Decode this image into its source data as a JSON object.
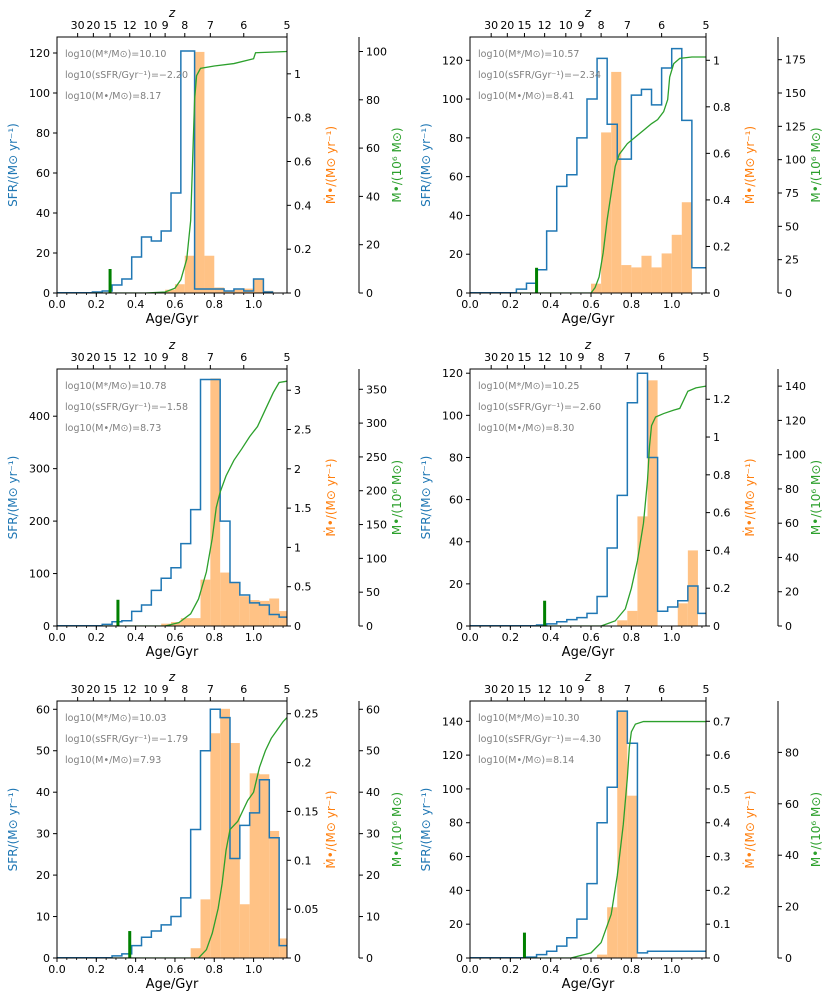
{
  "figure": {
    "xlabel": "Age/Gyr",
    "top_label": "z",
    "ylabel_sfr": "SFR/(M⊙ yr⁻¹)",
    "ylabel_mdot": "Ṁ•/(M⊙ yr⁻¹)",
    "ylabel_mbh": "M•/(10⁶ M⊙)",
    "colors": {
      "sfr": "#1f77b4",
      "bhar": "#ffbb78",
      "mbh": "#2ca02c",
      "marker": "#008000",
      "legend": "#7f7f7f"
    }
  },
  "chart_data": [
    {
      "type": "bar",
      "title": "",
      "annotations": [
        "log10(M*/M⊙)=10.10",
        "log10(sSFR/Gyr⁻¹)=−2.20",
        "log10(M•/M⊙)=8.17"
      ],
      "xlim": [
        0,
        1.17
      ],
      "xticks": [
        0.0,
        0.2,
        0.4,
        0.6,
        0.8,
        1.0
      ],
      "ztick_labels": [
        "30",
        "20",
        "15",
        "12",
        "10",
        "9",
        "8",
        "7",
        "6",
        "5"
      ],
      "ztick_ages": [
        0.105,
        0.185,
        0.27,
        0.37,
        0.475,
        0.55,
        0.65,
        0.78,
        0.95,
        1.17
      ],
      "sfr_ylim": [
        0,
        128
      ],
      "sfr_yticks": [
        0,
        20,
        40,
        60,
        80,
        100,
        120
      ],
      "sfr_x": [
        0.18,
        0.23,
        0.28,
        0.33,
        0.38,
        0.43,
        0.48,
        0.53,
        0.58,
        0.63,
        0.7,
        0.75,
        0.8,
        0.85,
        0.9,
        0.95,
        1.0,
        1.05,
        1.1
      ],
      "sfr_values": [
        0.5,
        1,
        4,
        7,
        18,
        28,
        26,
        31,
        50,
        121,
        2,
        2,
        2,
        1,
        2,
        1,
        7,
        0.5
      ],
      "bhar_ylim": [
        0,
        1.168
      ],
      "bhar_yticks": [
        0,
        0.2,
        0.4,
        0.6,
        0.8,
        1.0
      ],
      "bhar_x": [
        0.55,
        0.6,
        0.65,
        0.7,
        0.75,
        0.8,
        0.85,
        0.9,
        0.95,
        1.0,
        1.05,
        1.1
      ],
      "bhar_values": [
        0.015,
        0.04,
        0.17,
        1.1,
        0.17,
        0.025,
        0.01,
        0.015,
        0.02,
        0.065,
        0.01
      ],
      "mbh_ylim": [
        0,
        106
      ],
      "mbh_yticks": [
        0,
        20,
        40,
        60,
        80,
        100
      ],
      "mbh_points": [
        [
          0.0,
          0.0
        ],
        [
          0.45,
          0.0
        ],
        [
          0.55,
          0.4
        ],
        [
          0.6,
          2.0
        ],
        [
          0.63,
          5.5
        ],
        [
          0.66,
          14.0
        ],
        [
          0.68,
          30.0
        ],
        [
          0.69,
          55.0
        ],
        [
          0.7,
          80.0
        ],
        [
          0.71,
          90.0
        ],
        [
          0.73,
          93.0
        ],
        [
          0.8,
          94.0
        ],
        [
          0.9,
          95.0
        ],
        [
          1.0,
          97.0
        ],
        [
          1.01,
          99.5
        ],
        [
          1.17,
          100.0
        ]
      ],
      "seed_age": 0.27,
      "seed_marker": 12
    },
    {
      "type": "bar",
      "title": "",
      "annotations": [
        "log10(M*/M⊙)=10.57",
        "log10(sSFR/Gyr⁻¹)=−2.34",
        "log10(M•/M⊙)=8.41"
      ],
      "xlim": [
        0,
        1.17
      ],
      "xticks": [
        0.0,
        0.2,
        0.4,
        0.6,
        0.8,
        1.0
      ],
      "ztick_labels": [
        "30",
        "20",
        "15",
        "12",
        "10",
        "9",
        "8",
        "7",
        "6",
        "5"
      ],
      "ztick_ages": [
        0.105,
        0.185,
        0.27,
        0.37,
        0.475,
        0.55,
        0.65,
        0.78,
        0.95,
        1.17
      ],
      "sfr_ylim": [
        0,
        132
      ],
      "sfr_yticks": [
        0,
        20,
        40,
        60,
        80,
        100,
        120
      ],
      "sfr_x": [
        0.23,
        0.28,
        0.33,
        0.38,
        0.43,
        0.48,
        0.53,
        0.58,
        0.63,
        0.68,
        0.73,
        0.8,
        0.85,
        0.9,
        0.95,
        1.0,
        1.05,
        1.1,
        1.17
      ],
      "sfr_values": [
        2,
        5,
        12,
        32,
        55,
        61,
        80,
        100,
        121,
        87,
        69,
        102,
        105,
        97,
        116,
        126,
        89,
        13
      ],
      "bhar_ylim": [
        0,
        1.1
      ],
      "bhar_yticks": [
        0,
        0.2,
        0.4,
        0.6,
        0.8,
        1.0
      ],
      "bhar_x": [
        0.6,
        0.65,
        0.7,
        0.75,
        0.8,
        0.85,
        0.9,
        0.95,
        1.0,
        1.05,
        1.1
      ],
      "bhar_values": [
        0.04,
        0.69,
        0.95,
        0.12,
        0.11,
        0.16,
        0.11,
        0.17,
        0.25,
        0.39
      ],
      "mbh_ylim": [
        0,
        192
      ],
      "mbh_yticks": [
        0,
        25,
        50,
        75,
        100,
        125,
        150,
        175
      ],
      "mbh_points": [
        [
          0.0,
          0.0
        ],
        [
          0.6,
          0.0
        ],
        [
          0.62,
          4.0
        ],
        [
          0.64,
          12.0
        ],
        [
          0.66,
          30.0
        ],
        [
          0.68,
          55.0
        ],
        [
          0.7,
          75.0
        ],
        [
          0.72,
          95.0
        ],
        [
          0.74,
          104.0
        ],
        [
          0.78,
          112.0
        ],
        [
          0.82,
          117.0
        ],
        [
          0.86,
          122.0
        ],
        [
          0.9,
          127.0
        ],
        [
          0.93,
          130.0
        ],
        [
          0.96,
          136.0
        ],
        [
          0.98,
          145.0
        ],
        [
          0.99,
          162.0
        ],
        [
          1.01,
          172.0
        ],
        [
          1.04,
          176.0
        ],
        [
          1.1,
          177.0
        ],
        [
          1.17,
          177.0
        ]
      ],
      "seed_age": 0.33,
      "seed_marker": 13
    },
    {
      "type": "bar",
      "title": "",
      "annotations": [
        "log10(M*/M⊙)=10.78",
        "log10(sSFR/Gyr⁻¹)=−1.58",
        "log10(M•/M⊙)=8.73"
      ],
      "xlim": [
        0,
        1.17
      ],
      "xticks": [
        0.0,
        0.2,
        0.4,
        0.6,
        0.8,
        1.0
      ],
      "ztick_labels": [
        "30",
        "20",
        "15",
        "12",
        "10",
        "9",
        "8",
        "7",
        "6",
        "5"
      ],
      "ztick_ages": [
        0.105,
        0.185,
        0.27,
        0.37,
        0.475,
        0.55,
        0.65,
        0.78,
        0.95,
        1.17
      ],
      "sfr_ylim": [
        0,
        490
      ],
      "sfr_yticks": [
        0,
        100,
        200,
        300,
        400
      ],
      "sfr_x": [
        0.23,
        0.28,
        0.33,
        0.38,
        0.43,
        0.48,
        0.53,
        0.58,
        0.63,
        0.68,
        0.73,
        0.78,
        0.83,
        0.88,
        0.93,
        0.98,
        1.03,
        1.08,
        1.13,
        1.17
      ],
      "sfr_values": [
        3,
        8,
        10,
        28,
        40,
        68,
        91,
        111,
        157,
        222,
        470,
        470,
        200,
        83,
        59,
        44,
        40,
        22,
        17
      ],
      "bhar_ylim": [
        0,
        3.27
      ],
      "bhar_yticks": [
        0,
        0.5,
        1.0,
        1.5,
        2.0,
        2.5,
        3.0
      ],
      "bhar_x": [
        0.53,
        0.58,
        0.63,
        0.73,
        0.78,
        0.83,
        0.88,
        0.93,
        0.98,
        1.03,
        1.08,
        1.13,
        1.17
      ],
      "bhar_values": [
        0.03,
        0.05,
        0.1,
        0.59,
        3.15,
        0.68,
        0.55,
        0.38,
        0.33,
        0.32,
        0.35,
        0.19
      ],
      "mbh_ylim": [
        0,
        380
      ],
      "mbh_yticks": [
        0,
        50,
        100,
        150,
        200,
        250,
        300,
        350
      ],
      "mbh_points": [
        [
          0.0,
          0.0
        ],
        [
          0.55,
          0.0
        ],
        [
          0.62,
          5.0
        ],
        [
          0.68,
          18.0
        ],
        [
          0.72,
          40.0
        ],
        [
          0.76,
          80.0
        ],
        [
          0.79,
          130.0
        ],
        [
          0.81,
          175.0
        ],
        [
          0.83,
          198.0
        ],
        [
          0.86,
          222.0
        ],
        [
          0.9,
          245.0
        ],
        [
          0.94,
          262.0
        ],
        [
          0.98,
          280.0
        ],
        [
          1.02,
          295.0
        ],
        [
          1.06,
          320.0
        ],
        [
          1.1,
          345.0
        ],
        [
          1.13,
          360.0
        ],
        [
          1.17,
          362.0
        ]
      ],
      "seed_age": 0.31,
      "seed_marker": 50
    },
    {
      "type": "bar",
      "title": "",
      "annotations": [
        "log10(M*/M⊙)=10.25",
        "log10(sSFR/Gyr⁻¹)=−2.60",
        "log10(M•/M⊙)=8.30"
      ],
      "xlim": [
        0,
        1.17
      ],
      "xticks": [
        0.0,
        0.2,
        0.4,
        0.6,
        0.8,
        1.0
      ],
      "ztick_labels": [
        "30",
        "20",
        "15",
        "12",
        "10",
        "9",
        "8",
        "7",
        "6",
        "5"
      ],
      "ztick_ages": [
        0.105,
        0.185,
        0.27,
        0.37,
        0.475,
        0.55,
        0.65,
        0.78,
        0.95,
        1.17
      ],
      "sfr_ylim": [
        0,
        122
      ],
      "sfr_yticks": [
        0,
        20,
        40,
        60,
        80,
        100,
        120
      ],
      "sfr_x": [
        0.33,
        0.38,
        0.43,
        0.48,
        0.53,
        0.58,
        0.63,
        0.68,
        0.73,
        0.78,
        0.83,
        0.88,
        0.93,
        0.98,
        1.03,
        1.08,
        1.13,
        1.17
      ],
      "sfr_values": [
        0.5,
        1,
        2,
        3,
        4,
        6,
        14,
        37,
        62,
        106,
        120,
        80,
        7,
        9,
        12,
        19,
        6
      ],
      "bhar_ylim": [
        0,
        1.36
      ],
      "bhar_yticks": [
        0,
        0.2,
        0.4,
        0.6,
        0.8,
        1.0,
        1.2
      ],
      "bhar_x": [
        0.73,
        0.78,
        0.83,
        0.88,
        0.93,
        0.98,
        1.03,
        1.08,
        1.13
      ],
      "bhar_values": [
        0.03,
        0.08,
        0.58,
        1.3,
        0.0,
        0.0,
        0.12,
        0.4
      ],
      "mbh_ylim": [
        0,
        150
      ],
      "mbh_yticks": [
        0,
        20,
        40,
        60,
        80,
        100,
        120,
        140
      ],
      "mbh_points": [
        [
          0.0,
          0.0
        ],
        [
          0.65,
          0.0
        ],
        [
          0.72,
          3.0
        ],
        [
          0.77,
          10.0
        ],
        [
          0.8,
          22.0
        ],
        [
          0.83,
          38.0
        ],
        [
          0.86,
          60.0
        ],
        [
          0.88,
          85.0
        ],
        [
          0.89,
          105.0
        ],
        [
          0.9,
          117.0
        ],
        [
          0.92,
          122.0
        ],
        [
          0.96,
          124.0
        ],
        [
          1.01,
          126.0
        ],
        [
          1.04,
          127.0
        ],
        [
          1.08,
          137.0
        ],
        [
          1.12,
          139.0
        ],
        [
          1.17,
          140.0
        ]
      ],
      "seed_age": 0.37,
      "seed_marker": 12
    },
    {
      "type": "bar",
      "title": "",
      "annotations": [
        "log10(M*/M⊙)=10.03",
        "log10(sSFR/Gyr⁻¹)=−1.79",
        "log10(M•/M⊙)=7.93"
      ],
      "xlim": [
        0,
        1.17
      ],
      "xticks": [
        0.0,
        0.2,
        0.4,
        0.6,
        0.8,
        1.0
      ],
      "ztick_labels": [
        "30",
        "20",
        "15",
        "12",
        "10",
        "9",
        "8",
        "7",
        "6",
        "5"
      ],
      "ztick_ages": [
        0.105,
        0.185,
        0.27,
        0.37,
        0.475,
        0.55,
        0.65,
        0.78,
        0.95,
        1.17
      ],
      "sfr_ylim": [
        0,
        62
      ],
      "sfr_yticks": [
        0,
        10,
        20,
        30,
        40,
        50,
        60
      ],
      "sfr_x": [
        0.28,
        0.33,
        0.38,
        0.43,
        0.48,
        0.53,
        0.58,
        0.63,
        0.68,
        0.73,
        0.78,
        0.83,
        0.88,
        0.93,
        0.98,
        1.03,
        1.08,
        1.13,
        1.17
      ],
      "sfr_values": [
        0.5,
        1,
        3,
        5,
        6.5,
        8,
        10,
        14.5,
        31,
        50,
        60,
        58,
        24,
        32,
        35,
        43,
        29,
        3
      ],
      "bhar_ylim": [
        0,
        0.263
      ],
      "bhar_yticks": [
        0,
        0.05,
        0.1,
        0.15,
        0.2,
        0.25
      ],
      "bhar_x": [
        0.68,
        0.73,
        0.78,
        0.83,
        0.88,
        0.93,
        0.98,
        1.03,
        1.08,
        1.13,
        1.17
      ],
      "bhar_values": [
        0.01,
        0.06,
        0.23,
        0.255,
        0.22,
        0.055,
        0.189,
        0.188,
        0.13,
        0.02
      ],
      "mbh_ylim": [
        0,
        62
      ],
      "mbh_yticks": [
        0,
        10,
        20,
        30,
        40,
        50,
        60
      ],
      "mbh_points": [
        [
          0.0,
          0.0
        ],
        [
          0.72,
          0.0
        ],
        [
          0.76,
          2.0
        ],
        [
          0.79,
          6.0
        ],
        [
          0.82,
          12.0
        ],
        [
          0.84,
          18.0
        ],
        [
          0.86,
          26.0
        ],
        [
          0.88,
          31.0
        ],
        [
          0.92,
          33.0
        ],
        [
          0.95,
          36.0
        ],
        [
          0.97,
          38.0
        ],
        [
          1.0,
          40.0
        ],
        [
          1.03,
          46.0
        ],
        [
          1.06,
          50.0
        ],
        [
          1.09,
          53.0
        ],
        [
          1.12,
          55.0
        ],
        [
          1.15,
          57.0
        ],
        [
          1.17,
          58.0
        ]
      ],
      "seed_age": 0.37,
      "seed_marker": 6.5
    },
    {
      "type": "bar",
      "title": "",
      "annotations": [
        "log10(M*/M⊙)=10.30",
        "log10(sSFR/Gyr⁻¹)=−4.30",
        "log10(M•/M⊙)=8.14"
      ],
      "xlim": [
        0,
        1.17
      ],
      "xticks": [
        0.0,
        0.2,
        0.4,
        0.6,
        0.8,
        1.0
      ],
      "ztick_labels": [
        "30",
        "20",
        "15",
        "12",
        "10",
        "9",
        "8",
        "7",
        "6",
        "5"
      ],
      "ztick_ages": [
        0.105,
        0.185,
        0.27,
        0.37,
        0.475,
        0.55,
        0.65,
        0.78,
        0.95,
        1.17
      ],
      "sfr_ylim": [
        0,
        152
      ],
      "sfr_yticks": [
        0,
        20,
        40,
        60,
        80,
        100,
        120,
        140
      ],
      "sfr_x": [
        0.28,
        0.33,
        0.38,
        0.43,
        0.48,
        0.53,
        0.58,
        0.63,
        0.68,
        0.73,
        0.78,
        0.83,
        0.88,
        1.17
      ],
      "sfr_values": [
        0.5,
        2,
        4,
        7,
        12,
        23,
        44,
        80,
        101,
        146,
        127,
        3,
        4
      ],
      "bhar_ylim": [
        0,
        0.76
      ],
      "bhar_yticks": [
        0,
        0.1,
        0.2,
        0.3,
        0.4,
        0.5,
        0.6,
        0.7
      ],
      "bhar_x": [
        0.58,
        0.63,
        0.68,
        0.73,
        0.78,
        0.83,
        0.88
      ],
      "bhar_values": [
        0.0,
        0.01,
        0.15,
        0.73,
        0.48,
        0.0
      ],
      "mbh_ylim": [
        0,
        100
      ],
      "mbh_yticks": [
        0,
        20,
        40,
        60,
        80
      ],
      "mbh_points": [
        [
          0.0,
          0.0
        ],
        [
          0.5,
          0.0
        ],
        [
          0.6,
          2.0
        ],
        [
          0.65,
          6.0
        ],
        [
          0.7,
          17.0
        ],
        [
          0.73,
          32.0
        ],
        [
          0.76,
          52.0
        ],
        [
          0.78,
          70.0
        ],
        [
          0.79,
          82.0
        ],
        [
          0.8,
          88.0
        ],
        [
          0.82,
          91.0
        ],
        [
          0.86,
          92.0
        ],
        [
          1.0,
          92.0
        ],
        [
          1.17,
          92.0
        ]
      ],
      "seed_age": 0.27,
      "seed_marker": 15
    }
  ]
}
